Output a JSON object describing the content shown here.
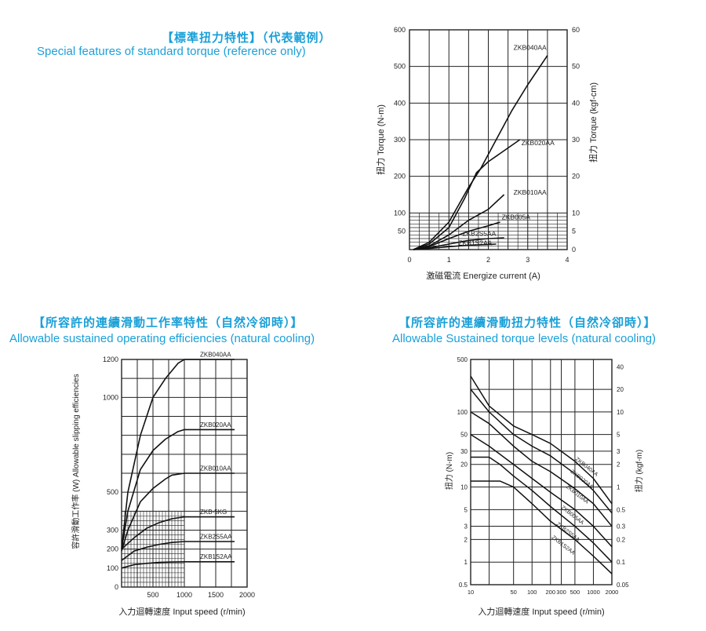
{
  "headings": {
    "torque_zh": "【標準扭力特性】（代表範例）",
    "torque_en": "Special features of standard torque  (reference only)",
    "eff_zh": "【所容許的連續滑動工作率特性（自然冷卻時）】",
    "eff_en": "Allowable sustained operating efficiencies (natural cooling)",
    "lev_zh": "【所容許的連續滑動扭力特性（自然冷卻時）】",
    "lev_en": "Allowable Sustained torque levels (natural cooling)"
  },
  "chart_data": [
    {
      "type": "line",
      "xlabel": "激磁電流 Energize current (A)",
      "ylabel": "扭力 Torque (N-m)",
      "y2label": "扭力 Torque (kgf-cm)",
      "xlim": [
        0,
        4
      ],
      "ylim": [
        0,
        600
      ],
      "y2lim": [
        0,
        60
      ],
      "x_ticks": [
        "0",
        "1",
        "2",
        "3",
        "4"
      ],
      "y_ticks": [
        "50",
        "100",
        "200",
        "300",
        "400",
        "500",
        "600"
      ],
      "y2_ticks": [
        "0",
        "5",
        "10",
        "20",
        "30",
        "40",
        "50",
        "60"
      ],
      "series": [
        {
          "name": "ZKB040AA",
          "x": [
            0.1,
            0.5,
            1.0,
            1.5,
            1.8,
            2.2,
            2.6,
            3.0,
            3.5
          ],
          "y": [
            0,
            20,
            75,
            170,
            220,
            300,
            380,
            450,
            530
          ]
        },
        {
          "name": "ZKB020AA",
          "x": [
            0.1,
            0.5,
            1.0,
            1.4,
            1.7,
            2.0,
            2.4,
            2.8
          ],
          "y": [
            0,
            15,
            60,
            140,
            210,
            240,
            270,
            300
          ]
        },
        {
          "name": "ZKB010AA",
          "x": [
            0.1,
            0.5,
            1.0,
            1.5,
            2.0,
            2.4
          ],
          "y": [
            0,
            10,
            40,
            80,
            110,
            150
          ]
        },
        {
          "name": "ZKB005A",
          "x": [
            0.1,
            0.5,
            1.0,
            1.5,
            2.0,
            2.3
          ],
          "y": [
            0,
            8,
            30,
            50,
            65,
            75
          ]
        },
        {
          "name": "ZKB2S5AA",
          "x": [
            0.1,
            0.5,
            1.0,
            1.5,
            2.0,
            2.4
          ],
          "y": [
            0,
            5,
            15,
            25,
            30,
            32
          ]
        },
        {
          "name": "ZKB1S2AA",
          "x": [
            0.1,
            0.5,
            1.0,
            1.5,
            2.0,
            2.2
          ],
          "y": [
            0,
            3,
            8,
            12,
            14,
            15
          ]
        }
      ]
    },
    {
      "type": "line",
      "xlabel": "入力迴轉速度  Input speed (r/min)",
      "ylabel": "容許滑動工作率 (W)  Allowable slipping efficiencies",
      "xlim": [
        0,
        2000
      ],
      "ylim": [
        0,
        1200
      ],
      "x_ticks": [
        "500",
        "1000",
        "1500",
        "2000"
      ],
      "y_ticks": [
        "0",
        "100",
        "200",
        "300",
        "500",
        "1000",
        "1200"
      ],
      "series": [
        {
          "name": "ZKB040AA",
          "x": [
            0,
            100,
            300,
            500,
            700,
            900,
            1000,
            1800
          ],
          "y": [
            200,
            500,
            800,
            1000,
            1100,
            1180,
            1200,
            1200
          ]
        },
        {
          "name": "ZKB020AA",
          "x": [
            0,
            100,
            300,
            500,
            700,
            900,
            1000,
            1800
          ],
          "y": [
            200,
            400,
            620,
            720,
            780,
            820,
            830,
            830
          ]
        },
        {
          "name": "ZKB010AA",
          "x": [
            0,
            100,
            300,
            500,
            700,
            800,
            1000,
            1800
          ],
          "y": [
            190,
            300,
            450,
            520,
            570,
            590,
            600,
            600
          ]
        },
        {
          "name": "ZKB-5KG",
          "x": [
            0,
            200,
            400,
            600,
            800,
            1000,
            1800
          ],
          "y": [
            200,
            260,
            310,
            340,
            360,
            370,
            370
          ]
        },
        {
          "name": "ZKB2S5AA",
          "x": [
            0,
            200,
            400,
            600,
            800,
            1000,
            1800
          ],
          "y": [
            140,
            190,
            210,
            225,
            235,
            240,
            240
          ]
        },
        {
          "name": "ZKB1S2AA",
          "x": [
            0,
            200,
            400,
            600,
            800,
            1000,
            1800
          ],
          "y": [
            100,
            118,
            125,
            130,
            132,
            133,
            133
          ]
        }
      ]
    },
    {
      "type": "line",
      "log_scale": true,
      "xlabel": "入力迴轉速度  Input speed (r/min)",
      "ylabel": "扭力 (N-m)",
      "y2label": "扭力 (kgf-m)",
      "xlim": [
        10,
        2000
      ],
      "ylim": [
        0.5,
        500
      ],
      "x_ticks": [
        "10",
        "50",
        "100",
        "200",
        "300",
        "500",
        "1000",
        "2000"
      ],
      "y_ticks": [
        "0.5",
        "1",
        "2",
        "3",
        "5",
        "10",
        "20",
        "30",
        "50",
        "100",
        "500"
      ],
      "y2_ticks": [
        "0.05",
        "0.1",
        "0.2",
        "0.3",
        "0.5",
        "1",
        "2",
        "3",
        "5",
        "10",
        "20",
        "40"
      ],
      "series": [
        {
          "name": "ZKB040AA",
          "x": [
            10,
            20,
            50,
            100,
            200,
            500,
            1000,
            2000
          ],
          "y": [
            300,
            120,
            65,
            50,
            38,
            22,
            13,
            6
          ]
        },
        {
          "name": "ZKB020AA",
          "x": [
            10,
            20,
            50,
            100,
            200,
            500,
            1000,
            2000
          ],
          "y": [
            200,
            100,
            50,
            35,
            26,
            15,
            9,
            4.5
          ]
        },
        {
          "name": "ZKB010AA",
          "x": [
            10,
            20,
            50,
            100,
            200,
            500,
            1000,
            2000
          ],
          "y": [
            100,
            70,
            35,
            22,
            16,
            9.5,
            6,
            3
          ]
        },
        {
          "name": "ZKB005AA",
          "x": [
            10,
            20,
            50,
            100,
            200,
            500,
            1000,
            2000
          ],
          "y": [
            50,
            35,
            20,
            13,
            8.5,
            5,
            3,
            1.6
          ]
        },
        {
          "name": "ZKB2S5AA",
          "x": [
            10,
            20,
            30,
            50,
            100,
            200,
            500,
            1000,
            2000
          ],
          "y": [
            25,
            25,
            20,
            14,
            9,
            5.5,
            3,
            1.8,
            1
          ]
        },
        {
          "name": "ZKB1S2AA",
          "x": [
            10,
            30,
            50,
            100,
            200,
            500,
            1000,
            2000
          ],
          "y": [
            12,
            12,
            10,
            6,
            3.5,
            2,
            1.2,
            0.7
          ]
        }
      ]
    }
  ]
}
